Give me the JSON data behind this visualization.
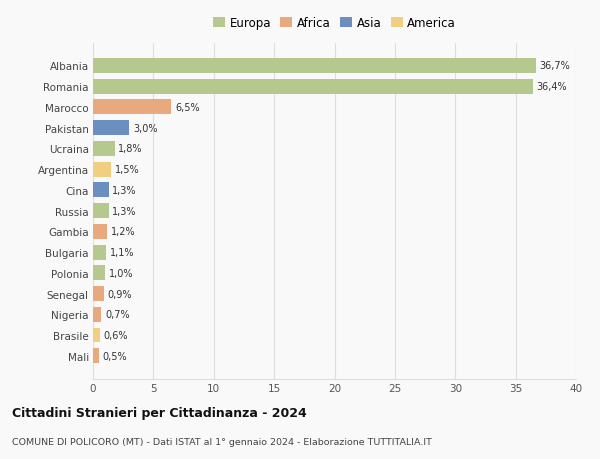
{
  "countries": [
    "Albania",
    "Romania",
    "Marocco",
    "Pakistan",
    "Ucraina",
    "Argentina",
    "Cina",
    "Russia",
    "Gambia",
    "Bulgaria",
    "Polonia",
    "Senegal",
    "Nigeria",
    "Brasile",
    "Mali"
  ],
  "values": [
    36.7,
    36.4,
    6.5,
    3.0,
    1.8,
    1.5,
    1.3,
    1.3,
    1.2,
    1.1,
    1.0,
    0.9,
    0.7,
    0.6,
    0.5
  ],
  "labels": [
    "36,7%",
    "36,4%",
    "6,5%",
    "3,0%",
    "1,8%",
    "1,5%",
    "1,3%",
    "1,3%",
    "1,2%",
    "1,1%",
    "1,0%",
    "0,9%",
    "0,7%",
    "0,6%",
    "0,5%"
  ],
  "continents": [
    "Europa",
    "Europa",
    "Africa",
    "Asia",
    "Europa",
    "America",
    "Asia",
    "Europa",
    "Africa",
    "Europa",
    "Europa",
    "Africa",
    "Africa",
    "America",
    "Africa"
  ],
  "continent_colors": {
    "Europa": "#b5c98e",
    "Africa": "#e8a97e",
    "Asia": "#6b8fbf",
    "America": "#f0d080"
  },
  "legend_order": [
    "Europa",
    "Africa",
    "Asia",
    "America"
  ],
  "xlim": [
    0,
    40
  ],
  "xticks": [
    0,
    5,
    10,
    15,
    20,
    25,
    30,
    35,
    40
  ],
  "title": "Cittadini Stranieri per Cittadinanza - 2024",
  "subtitle": "COMUNE DI POLICORO (MT) - Dati ISTAT al 1° gennaio 2024 - Elaborazione TUTTITALIA.IT",
  "bg_color": "#f9f9f9",
  "grid_color": "#dddddd",
  "bar_height": 0.72
}
